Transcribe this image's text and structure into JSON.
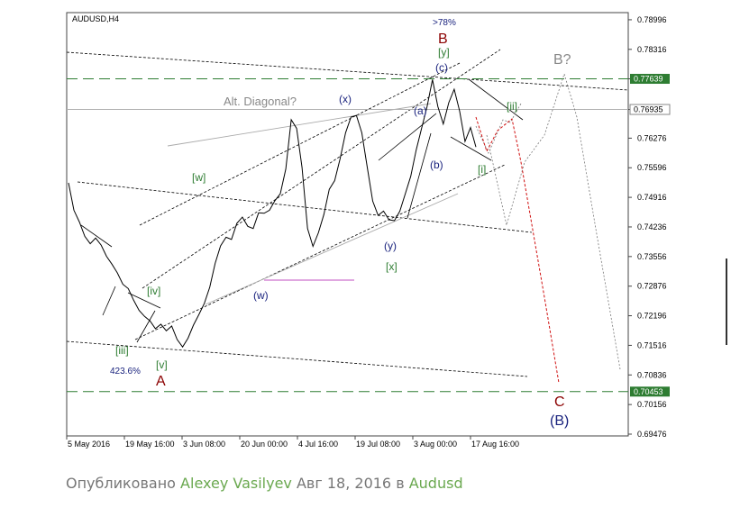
{
  "chart_data": {
    "type": "line",
    "title": "AUDUSD,H4",
    "x_tick_labels": [
      "5 May 2016",
      "19 May 16:00",
      "3 Jun 08:00",
      "20 Jun 00:00",
      "4 Jul 16:00",
      "19 Jul 08:00",
      "3 Aug 00:00",
      "17 Aug 16:00"
    ],
    "y_tick_labels": [
      "0.78996",
      "0.78316",
      "0.77639",
      "0.76935",
      "0.76276",
      "0.75596",
      "0.74916",
      "0.74236",
      "0.73556",
      "0.72876",
      "0.72196",
      "0.71516",
      "0.70836",
      "0.70156",
      "0.69476"
    ],
    "ylim": [
      0.69476,
      0.79036
    ],
    "x_bars": 560,
    "series": [
      {
        "values": [
          0.7525,
          0.7462,
          0.7435,
          0.7402,
          0.7385,
          0.7398,
          0.7382,
          0.7356,
          0.7338,
          0.7318,
          0.7292,
          0.7282,
          0.7255,
          0.7232,
          0.7218,
          0.7208,
          0.719,
          0.72,
          0.7185,
          0.7196,
          0.7165,
          0.7148,
          0.7168,
          0.7198,
          0.7222,
          0.7248,
          0.7285,
          0.734,
          0.738,
          0.74,
          0.7395,
          0.7432,
          0.7446,
          0.7425,
          0.742,
          0.7456,
          0.7455,
          0.7462,
          0.7484,
          0.75,
          0.7557,
          0.767,
          0.765,
          0.756,
          0.742,
          0.7379,
          0.741,
          0.7452,
          0.751,
          0.753,
          0.758,
          0.764,
          0.7676,
          0.768,
          0.764,
          0.756,
          0.7483,
          0.745,
          0.746,
          0.744,
          0.7438,
          0.746,
          0.75,
          0.754,
          0.76,
          0.765,
          0.77,
          0.7762,
          0.77,
          0.766,
          0.7709,
          0.774,
          0.769,
          0.762,
          0.7652,
          0.7607
        ]
      }
    ],
    "horizontal_levels": [
      {
        "value": 0.77639,
        "label": "0.77639",
        "style": "dashed-green"
      },
      {
        "value": 0.76935,
        "label": "0.76935",
        "style": "solid-gray"
      },
      {
        "value": 0.70453,
        "label": "0.70453",
        "style": "dashed-green"
      }
    ],
    "wave_labels": {
      "B_top": ">78%",
      "B": "B",
      "y_bracket": "[y]",
      "c_paren": "(c)",
      "B_question": "B?",
      "ii_bracket": "[ii]",
      "i_bracket": "[i]",
      "a_paren": "(a)",
      "b_paren": "(b)",
      "x_paren": "(x)",
      "alt_diagonal": "Alt. Diagonal?",
      "w_bracket": "[w]",
      "y_paren": "(y)",
      "x_bracket": "[x]",
      "w_paren": "(w)",
      "iv_bracket": "[iv]",
      "iii_bracket": "[iii]",
      "fib": "423.6%",
      "v_bracket": "[v]",
      "A": "A",
      "C": "C",
      "B_paren": "(B)"
    }
  },
  "footer": {
    "published": "Опубликовано",
    "author": "Alexey Vasilyev",
    "date": "Авг 18, 2016 в",
    "channel": "Audusd"
  }
}
